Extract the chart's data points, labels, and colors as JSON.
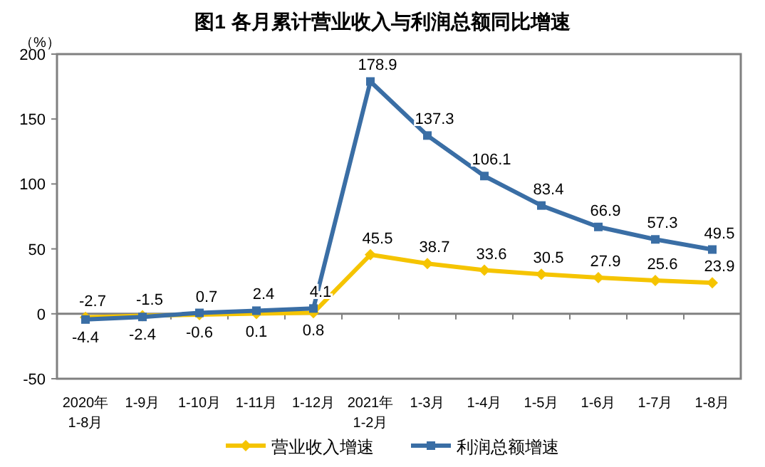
{
  "chart_data": {
    "type": "line",
    "title": "图1  各月累计营业收入与利润总额同比增速",
    "ylabel": "（%）",
    "categories": [
      "2020年 1-8月",
      "1-9月",
      "1-10月",
      "1-11月",
      "1-12月",
      "2021年 1-2月",
      "1-3月",
      "1-4月",
      "1-5月",
      "1-6月",
      "1-7月",
      "1-8月"
    ],
    "series": [
      {
        "name": "营业收入增速",
        "color": "#f5c400",
        "marker": "diamond",
        "values": [
          -2.7,
          -1.5,
          -0.6,
          0.1,
          0.8,
          45.5,
          38.7,
          33.6,
          30.5,
          27.9,
          25.6,
          23.9
        ]
      },
      {
        "name": "利润总额增速",
        "color": "#3a6ea5",
        "marker": "square",
        "values": [
          -4.4,
          -2.4,
          0.7,
          2.4,
          4.1,
          178.9,
          137.3,
          106.1,
          83.4,
          66.9,
          57.3,
          49.5
        ]
      }
    ],
    "ylim": [
      -50,
      200
    ],
    "yticks": [
      -50,
      0,
      50,
      100,
      150,
      200
    ],
    "legend": "bottom",
    "data_labels": true
  }
}
